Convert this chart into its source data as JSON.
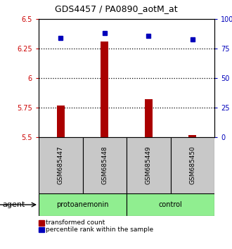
{
  "title": "GDS4457 / PA0890_aotM_at",
  "samples": [
    "GSM685447",
    "GSM685448",
    "GSM685449",
    "GSM685450"
  ],
  "transformed_counts": [
    5.77,
    6.31,
    5.82,
    5.52
  ],
  "percentile_ranks": [
    84,
    88,
    86,
    83
  ],
  "ylim_left": [
    5.5,
    6.5
  ],
  "ylim_right": [
    0,
    100
  ],
  "yticks_left": [
    5.5,
    5.75,
    6.0,
    6.25,
    6.5
  ],
  "yticks_right": [
    0,
    25,
    50,
    75,
    100
  ],
  "ytick_labels_left": [
    "5.5",
    "5.75",
    "6",
    "6.25",
    "6.5"
  ],
  "ytick_labels_right": [
    "0",
    "25",
    "50",
    "75",
    "100%"
  ],
  "bar_color": "#aa0000",
  "dot_color": "#0000bb",
  "group_labels": [
    "protoanemonin",
    "control"
  ],
  "agent_label": "agent",
  "legend_bar_label": "transformed count",
  "legend_dot_label": "percentile rank within the sample",
  "sample_box_color": "#c8c8c8",
  "group_box_color": "#90ee90",
  "bar_bottom": 5.5,
  "n_samples": 4
}
